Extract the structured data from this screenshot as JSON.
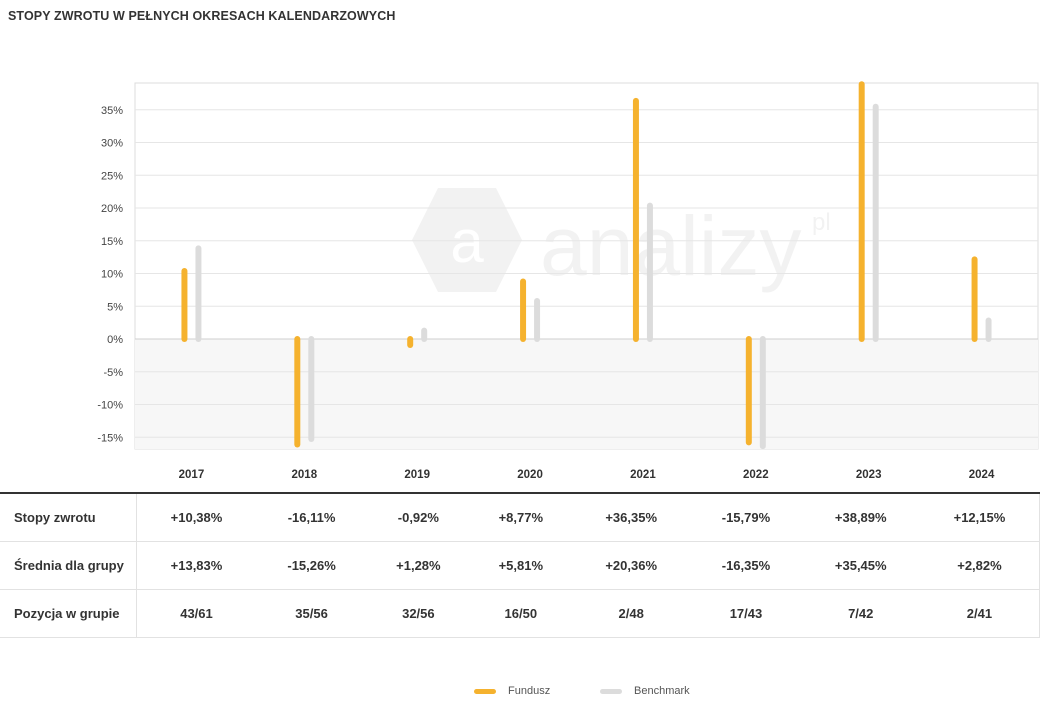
{
  "header": {
    "title": "STOPY ZWROTU W PEŁNYCH OKRESACH KALENDARZOWYCH"
  },
  "watermark": {
    "text": "analizy",
    "suffix": "pl"
  },
  "colors": {
    "fund": "#f5b22e",
    "benchmark": "#dcdcdc",
    "negative_area": "#f7f7f7",
    "grid": "#e6e6e6"
  },
  "chart_data": {
    "type": "bar",
    "categories": [
      "2017",
      "2018",
      "2019",
      "2020",
      "2021",
      "2022",
      "2023",
      "2024"
    ],
    "series": [
      {
        "name": "Fundusz",
        "values": [
          10.38,
          -16.11,
          -0.92,
          8.77,
          36.35,
          -15.79,
          38.89,
          12.15
        ]
      },
      {
        "name": "Benchmark",
        "values": [
          13.83,
          -15.26,
          1.28,
          5.81,
          20.36,
          -16.35,
          35.45,
          2.82
        ]
      }
    ],
    "yticks": [
      35,
      30,
      25,
      20,
      15,
      10,
      5,
      0,
      -5,
      -10,
      -15
    ],
    "ytick_labels": [
      "35%",
      "30%",
      "25%",
      "20%",
      "15%",
      "10%",
      "5%",
      "0%",
      "-5%",
      "-10%",
      "-15%"
    ],
    "ylim": [
      -17,
      39
    ],
    "grid": true,
    "legend_position": "bottom"
  },
  "table": {
    "rows": [
      {
        "label": "Stopy zwrotu",
        "values": [
          "+10,38%",
          "-16,11%",
          "-0,92%",
          "+8,77%",
          "+36,35%",
          "-15,79%",
          "+38,89%",
          "+12,15%"
        ]
      },
      {
        "label": "Średnia dla grupy",
        "values": [
          "+13,83%",
          "-15,26%",
          "+1,28%",
          "+5,81%",
          "+20,36%",
          "-16,35%",
          "+35,45%",
          "+2,82%"
        ]
      },
      {
        "label": "Pozycja w grupie",
        "values": [
          "43/61",
          "35/56",
          "32/56",
          "16/50",
          "2/48",
          "17/43",
          "7/42",
          "2/41"
        ]
      }
    ]
  },
  "legend": {
    "items": [
      "Fundusz",
      "Benchmark"
    ]
  }
}
